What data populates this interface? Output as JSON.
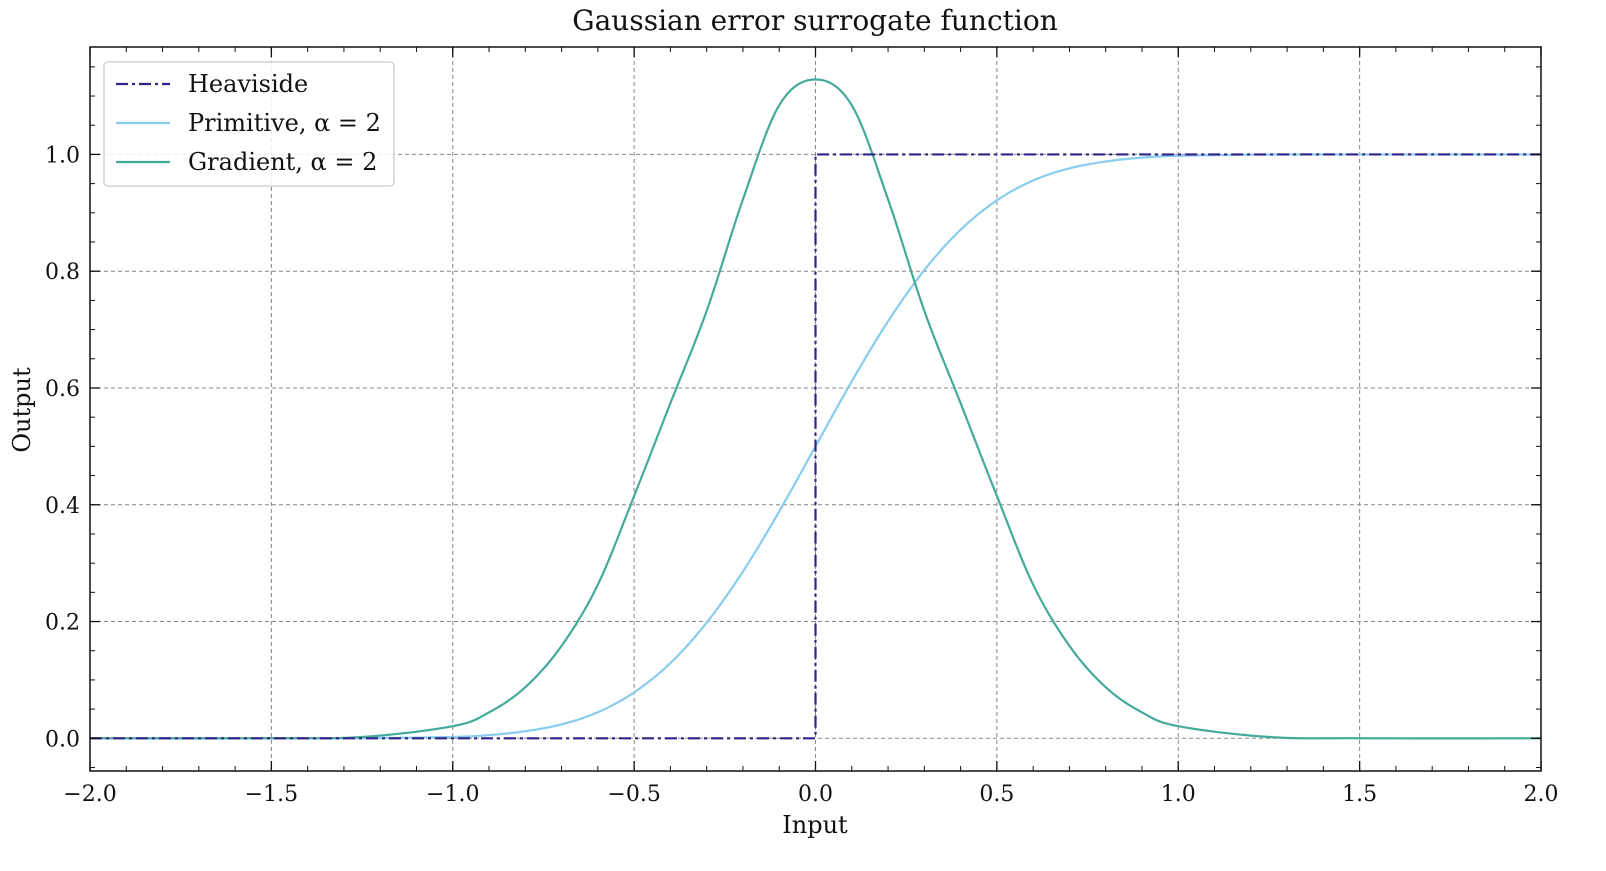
{
  "chart_data": {
    "type": "line",
    "title": "Gaussian error surrogate function",
    "xlabel": "Input",
    "ylabel": "Output",
    "xlim": [
      -2.0,
      2.0
    ],
    "ylim": [
      -0.056,
      1.184
    ],
    "x_ticks": [
      -2.0,
      -1.5,
      -1.0,
      -0.5,
      0.0,
      0.5,
      1.0,
      1.5,
      2.0
    ],
    "x_tick_labels": [
      "−2.0",
      "−1.5",
      "−1.0",
      "−0.5",
      "0.0",
      "0.5",
      "1.0",
      "1.5",
      "2.0"
    ],
    "y_ticks": [
      0.0,
      0.2,
      0.4,
      0.6,
      0.8,
      1.0
    ],
    "y_tick_labels": [
      "0.0",
      "0.2",
      "0.4",
      "0.6",
      "0.8",
      "1.0"
    ],
    "grid": true,
    "legend_position": "top-left",
    "series": [
      {
        "name": "Heaviside",
        "color": "#332288",
        "dash": "dashdot",
        "x": [
          -2.0,
          -1.5,
          -1.0,
          -0.5,
          0.0,
          0.0,
          0.5,
          1.0,
          1.5,
          2.0
        ],
        "y": [
          0.0,
          0.0,
          0.0,
          0.0,
          0.0,
          1.0,
          1.0,
          1.0,
          1.0,
          1.0
        ]
      },
      {
        "name": "Primitive, α = 2",
        "color": "#88CCEE",
        "x": [
          -2.0,
          -1.5,
          -1.25,
          -1.0,
          -0.9,
          -0.8,
          -0.7,
          -0.6,
          -0.5,
          -0.4,
          -0.3,
          -0.2,
          -0.1,
          0.0,
          0.1,
          0.2,
          0.3,
          0.4,
          0.5,
          0.6,
          0.7,
          0.8,
          0.9,
          1.0,
          1.25,
          1.5,
          2.0
        ],
        "y": [
          0.0,
          0.0,
          0.0002,
          0.0023,
          0.0055,
          0.0121,
          0.0239,
          0.0446,
          0.0786,
          0.1289,
          0.1981,
          0.2858,
          0.3886,
          0.5,
          0.6114,
          0.7142,
          0.8019,
          0.8711,
          0.9214,
          0.9554,
          0.9761,
          0.9879,
          0.9945,
          0.9977,
          0.9998,
          1.0,
          1.0
        ]
      },
      {
        "name": "Gradient, α = 2",
        "color": "#44AA99",
        "x": [
          -2.0,
          -1.5,
          -1.25,
          -1.0,
          -0.9,
          -0.8,
          -0.7,
          -0.6,
          -0.5,
          -0.4,
          -0.3,
          -0.2,
          -0.1,
          0.0,
          0.1,
          0.2,
          0.3,
          0.4,
          0.5,
          0.6,
          0.7,
          0.8,
          0.9,
          1.0,
          1.25,
          1.5,
          2.0
        ],
        "y": [
          0.0,
          0.0001,
          0.0022,
          0.0207,
          0.0444,
          0.0875,
          0.1583,
          0.2632,
          0.4151,
          0.574,
          0.7321,
          0.923,
          1.0843,
          1.1284,
          1.0843,
          0.923,
          0.7321,
          0.574,
          0.4151,
          0.2632,
          0.1583,
          0.0875,
          0.0444,
          0.0207,
          0.0022,
          0.0001,
          0.0
        ]
      }
    ]
  }
}
